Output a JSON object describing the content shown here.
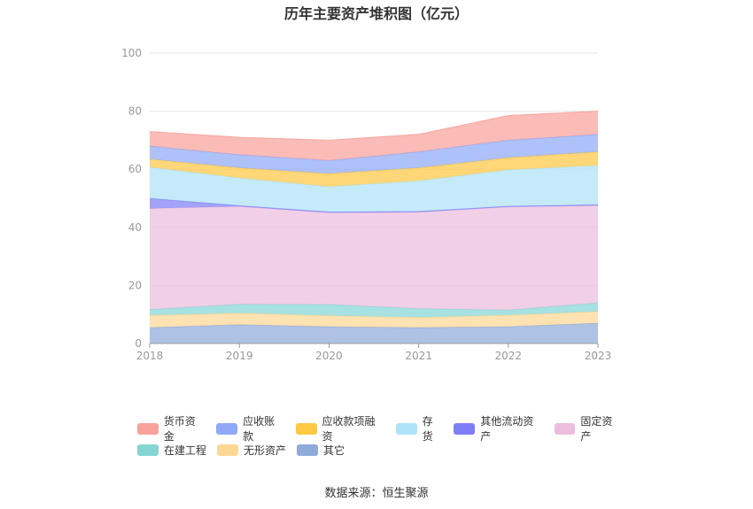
{
  "chart_data": {
    "type": "area",
    "stacked": true,
    "title": "历年主要资产堆积图（亿元）",
    "x": [
      "2018",
      "2019",
      "2020",
      "2021",
      "2022",
      "2023"
    ],
    "y_ticks": [
      "0",
      "20",
      "40",
      "60",
      "80",
      "100"
    ],
    "ylim": [
      0,
      100
    ],
    "grid": true,
    "legend_position": "bottom",
    "series": [
      {
        "name": "其它",
        "color": "#8FAADC",
        "values": [
          5.5,
          6.5,
          5.8,
          5.5,
          5.8,
          7.0
        ]
      },
      {
        "name": "无形资产",
        "color": "#FDD794",
        "values": [
          4.2,
          4.0,
          3.8,
          3.5,
          4.0,
          4.0
        ]
      },
      {
        "name": "在建工程",
        "color": "#85D5D5",
        "values": [
          2.0,
          3.0,
          3.8,
          3.0,
          1.7,
          3.0
        ]
      },
      {
        "name": "固定资产",
        "color": "#EBBEDE",
        "values": [
          34.8,
          33.7,
          31.6,
          33.2,
          35.5,
          33.5
        ]
      },
      {
        "name": "其他流动资产",
        "color": "#7E7EF7",
        "values": [
          3.5,
          0.3,
          0.3,
          0.3,
          0.3,
          0.3
        ]
      },
      {
        "name": "存货",
        "color": "#AEE3FA",
        "values": [
          10.7,
          9.5,
          8.7,
          10.5,
          12.5,
          13.5
        ]
      },
      {
        "name": "应收款项融资",
        "color": "#FFC844",
        "values": [
          2.8,
          3.5,
          4.5,
          4.5,
          4.2,
          4.7
        ]
      },
      {
        "name": "应收账款",
        "color": "#8FA9F6",
        "values": [
          4.5,
          4.5,
          4.5,
          5.5,
          6.0,
          6.0
        ]
      },
      {
        "name": "货币资金",
        "color": "#F9A19A",
        "values": [
          5.0,
          6.0,
          7.0,
          6.0,
          8.5,
          8.0
        ]
      }
    ],
    "legend_order": [
      "货币资金",
      "应收账款",
      "应收款项融资",
      "存货",
      "其他流动资产",
      "固定资产",
      "在建工程",
      "无形资产",
      "其它"
    ]
  },
  "source_text": "数据来源：恒生聚源"
}
